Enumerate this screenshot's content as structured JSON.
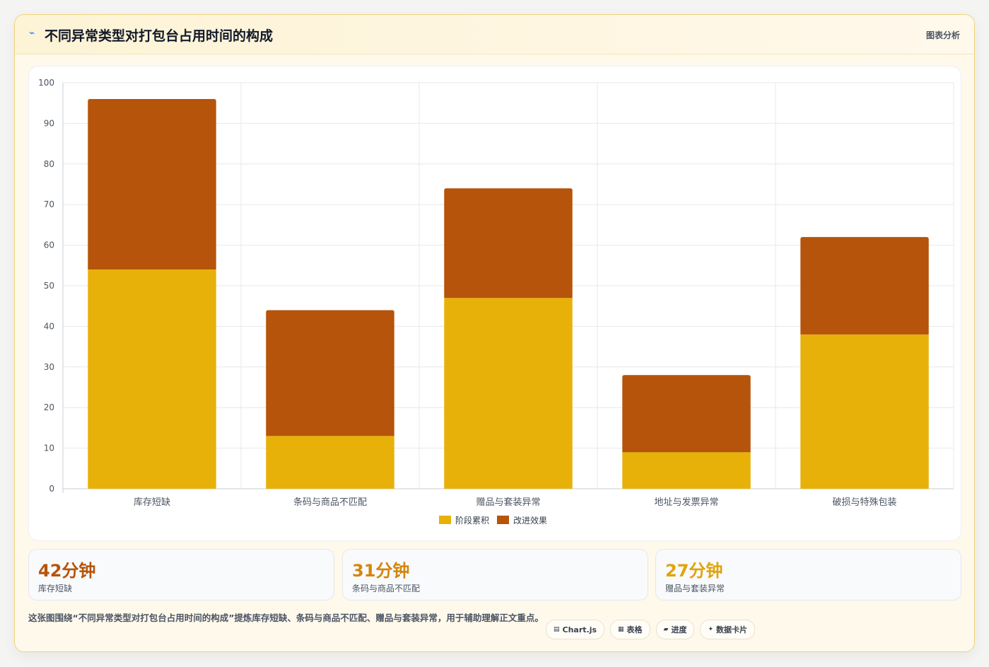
{
  "header": {
    "icon": "chart-line-icon",
    "title": "不同异常类型对打包台占用时间的构成",
    "tag": "图表分析"
  },
  "colors": {
    "series1": "#e8b10a",
    "series2": "#b5540a",
    "stat1": "#b5540a",
    "stat2": "#d4850c",
    "stat3": "#e0a40a"
  },
  "chart_data": {
    "type": "bar",
    "stacked": true,
    "categories": [
      "库存短缺",
      "条码与商品不匹配",
      "赠品与套装异常",
      "地址与发票异常",
      "破损与特殊包装"
    ],
    "series": [
      {
        "name": "阶段累积",
        "values": [
          54,
          13,
          47,
          9,
          38
        ]
      },
      {
        "name": "改进效果",
        "values": [
          42,
          31,
          27,
          19,
          24
        ]
      }
    ],
    "ylim": [
      0,
      100
    ],
    "yticks": [
      0,
      10,
      20,
      30,
      40,
      50,
      60,
      70,
      80,
      90,
      100
    ],
    "grid": true,
    "legend": "bottom"
  },
  "stats": [
    {
      "value": "42分钟",
      "label": "库存短缺"
    },
    {
      "value": "31分钟",
      "label": "条码与商品不匹配"
    },
    {
      "value": "27分钟",
      "label": "赠品与套装异常"
    }
  ],
  "note": "这张图围绕“不同异常类型对打包台占用时间的构成”提炼库存短缺、条码与商品不匹配、赠品与套装异常，用于辅助理解正文重点。",
  "chips": [
    {
      "icon": "▤",
      "label": "Chart.js"
    },
    {
      "icon": "▦",
      "label": "表格"
    },
    {
      "icon": "▰",
      "label": "进度"
    },
    {
      "icon": "✦",
      "label": "数据卡片"
    }
  ]
}
